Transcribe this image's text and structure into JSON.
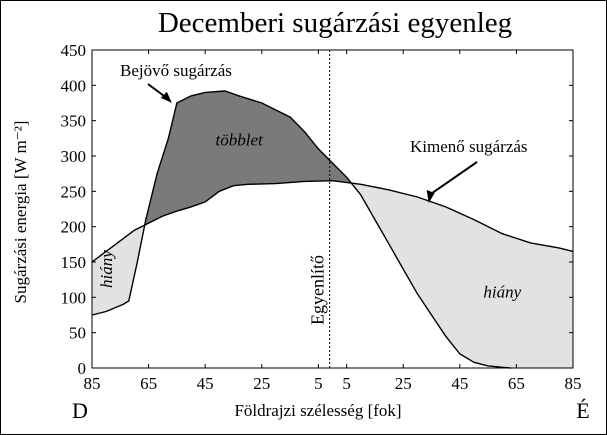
{
  "chart_data": {
    "type": "area",
    "title": "Decemberi sugárzási egyenleg",
    "xlabel": "Földrajzi szélesség [fok]",
    "ylabel": "Sugárzási energia [W m⁻²]",
    "ylim": [
      0,
      450
    ],
    "yticks": [
      0,
      50,
      100,
      150,
      200,
      250,
      300,
      350,
      400,
      450
    ],
    "xlim": [
      -85,
      85
    ],
    "xticks": [
      {
        "x": -85,
        "label": "85"
      },
      {
        "x": -65,
        "label": "65"
      },
      {
        "x": -45,
        "label": "45"
      },
      {
        "x": -25,
        "label": "25"
      },
      {
        "x": -5,
        "label": "5"
      },
      {
        "x": 5,
        "label": "5"
      },
      {
        "x": 25,
        "label": "25"
      },
      {
        "x": 45,
        "label": "45"
      },
      {
        "x": 65,
        "label": "65"
      },
      {
        "x": 85,
        "label": "85"
      }
    ],
    "hemisphere_labels": {
      "left": "D",
      "right": "É"
    },
    "equator_label": "Egyenlítő",
    "equator_x": -1,
    "series": [
      {
        "name": "Bejövő sugárzás",
        "x": [
          -85,
          -80,
          -74,
          -72,
          -69,
          -66,
          -62,
          -58,
          -55,
          -50,
          -45,
          -38,
          -33,
          -25,
          -15,
          -10,
          -5,
          0,
          5,
          10,
          15,
          20,
          25,
          30,
          35,
          40,
          45,
          50,
          55,
          60,
          63
        ],
        "values": [
          75,
          80,
          90,
          95,
          150,
          210,
          275,
          325,
          375,
          385,
          390,
          392,
          385,
          375,
          355,
          335,
          310,
          290,
          270,
          245,
          210,
          175,
          140,
          105,
          75,
          45,
          20,
          8,
          3,
          1,
          0
        ]
      },
      {
        "name": "Kimenő sugárzás",
        "x": [
          -85,
          -80,
          -75,
          -70,
          -65,
          -60,
          -55,
          -50,
          -45,
          -40,
          -35,
          -30,
          -20,
          -10,
          0,
          10,
          20,
          30,
          40,
          50,
          60,
          70,
          80,
          85
        ],
        "values": [
          150,
          165,
          180,
          195,
          205,
          215,
          222,
          228,
          235,
          250,
          258,
          260,
          261,
          264,
          265,
          260,
          252,
          242,
          228,
          210,
          190,
          177,
          170,
          165
        ]
      }
    ],
    "annotations": [
      {
        "text": "többlet",
        "x": -33,
        "y": 315
      },
      {
        "text": "hiány",
        "x": -78,
        "y": 140
      },
      {
        "text": "hiány",
        "x": 60,
        "y": 100
      }
    ]
  }
}
